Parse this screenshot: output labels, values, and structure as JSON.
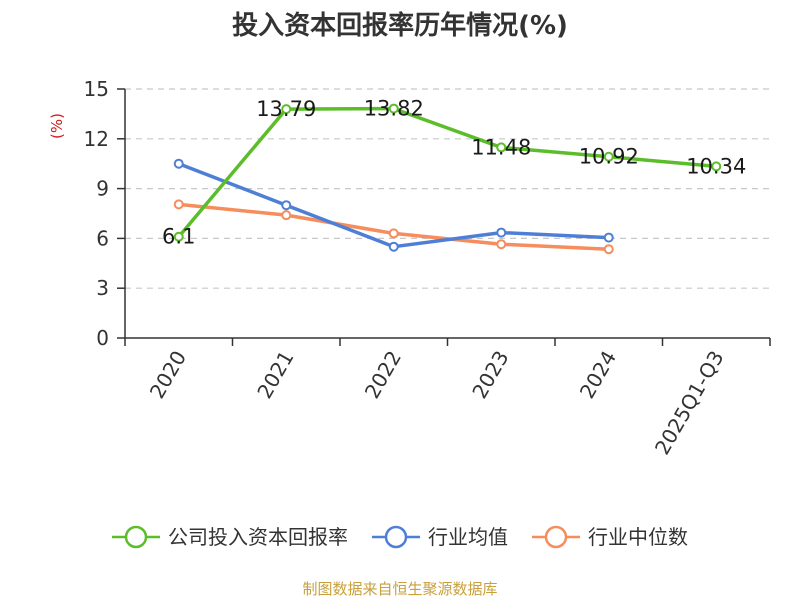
{
  "chart_data": {
    "type": "line",
    "title": "投入资本回报率历年情况(%)",
    "ylabel": "(%)",
    "xlabel": "",
    "categories": [
      "2020",
      "2021",
      "2022",
      "2023",
      "2024",
      "2025Q1-Q3"
    ],
    "ylim": [
      0,
      15
    ],
    "yticks": [
      0,
      3,
      6,
      9,
      12,
      15
    ],
    "grid": true,
    "legend_position": "bottom",
    "series": [
      {
        "name": "公司投入资本回报率",
        "color": "#5cbd2a",
        "values": [
          6.1,
          13.79,
          13.82,
          11.48,
          10.92,
          10.34
        ],
        "labels": [
          "6.1",
          "13.79",
          "13.82",
          "11.48",
          "10.92",
          "10.34"
        ],
        "show_labels": true
      },
      {
        "name": "行业均值",
        "color": "#4e7fd6",
        "values": [
          10.5,
          8.0,
          5.5,
          6.35,
          6.05,
          null
        ],
        "show_labels": false
      },
      {
        "name": "行业中位数",
        "color": "#f58d5c",
        "values": [
          8.05,
          7.4,
          6.3,
          5.65,
          5.35,
          null
        ],
        "show_labels": false
      }
    ]
  },
  "source_note": "制图数据来自恒生聚源数据库",
  "colors": {
    "title": "#333333",
    "ylabel": "#d11b1b",
    "axis": "#333333",
    "grid": "#c8c8c8",
    "source": "#c8a03c"
  }
}
